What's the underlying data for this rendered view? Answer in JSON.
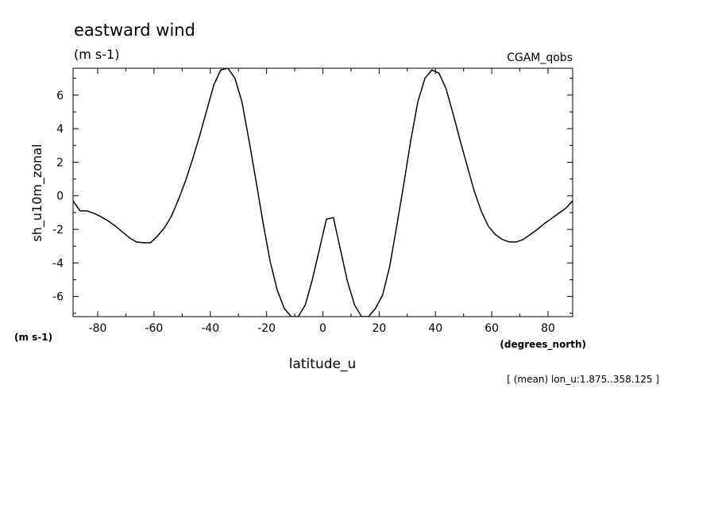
{
  "chart_data": {
    "type": "line",
    "title": "eastward wind",
    "subtitle": "(m s-1)",
    "dataset_label": "CGAM_qobs",
    "ylabel": "sh_u10m_zonal",
    "yunits": "(m s-1)",
    "xlabel": "latitude_u",
    "xunits": "(degrees_north)",
    "footnote": "[ (mean) lon_u:1.875..358.125 ]",
    "xlim": [
      -88.75,
      88.75
    ],
    "ylim": [
      -7.2,
      7.6
    ],
    "xticks": [
      -80,
      -60,
      -40,
      -20,
      0,
      20,
      40,
      60,
      80
    ],
    "xtick_labels": [
      "-80",
      "-60",
      "-40",
      "-20",
      "0",
      "20",
      "40",
      "60",
      "80"
    ],
    "yticks": [
      -6,
      -4,
      -2,
      0,
      2,
      4,
      6
    ],
    "ytick_labels": [
      "-6",
      "-4",
      "-2",
      "0",
      "2",
      "4",
      "6"
    ],
    "grid": false,
    "series": [
      {
        "x": [
          -88.75,
          -86.25,
          -83.75,
          -81.25,
          -78.75,
          -76.25,
          -73.75,
          -71.25,
          -68.75,
          -66.25,
          -63.75,
          -61.25,
          -58.75,
          -56.25,
          -53.75,
          -51.25,
          -48.75,
          -46.25,
          -43.75,
          -41.25,
          -38.75,
          -36.25,
          -33.75,
          -31.25,
          -28.75,
          -26.25,
          -23.75,
          -21.25,
          -18.75,
          -16.25,
          -13.75,
          -11.25,
          -8.75,
          -6.25,
          -3.75,
          -1.25,
          1.25,
          3.75,
          6.25,
          8.75,
          11.25,
          13.75,
          16.25,
          18.75,
          21.25,
          23.75,
          26.25,
          28.75,
          31.25,
          33.75,
          36.25,
          38.75,
          41.25,
          43.75,
          46.25,
          48.75,
          51.25,
          53.75,
          56.25,
          58.75,
          61.25,
          63.75,
          66.25,
          68.75,
          71.25,
          73.75,
          76.25,
          78.75,
          81.25,
          83.75,
          86.25,
          88.75
        ],
        "y": [
          -0.3,
          -0.9,
          -0.9,
          -1.05,
          -1.25,
          -1.5,
          -1.8,
          -2.15,
          -2.5,
          -2.75,
          -2.8,
          -2.8,
          -2.4,
          -1.9,
          -1.2,
          -0.2,
          0.9,
          2.2,
          3.6,
          5.1,
          6.6,
          7.5,
          7.6,
          7.0,
          5.6,
          3.3,
          0.9,
          -1.6,
          -3.9,
          -5.6,
          -6.7,
          -7.2,
          -7.2,
          -6.5,
          -5.0,
          -3.2,
          -1.4,
          -1.3,
          -3.2,
          -5.1,
          -6.5,
          -7.2,
          -7.2,
          -6.7,
          -5.9,
          -4.2,
          -1.8,
          0.7,
          3.3,
          5.6,
          7.0,
          7.5,
          7.3,
          6.4,
          4.9,
          3.3,
          1.8,
          0.3,
          -0.9,
          -1.8,
          -2.3,
          -2.6,
          -2.75,
          -2.75,
          -2.6,
          -2.3,
          -2.0,
          -1.65,
          -1.35,
          -1.05,
          -0.75,
          -0.3
        ]
      }
    ]
  }
}
